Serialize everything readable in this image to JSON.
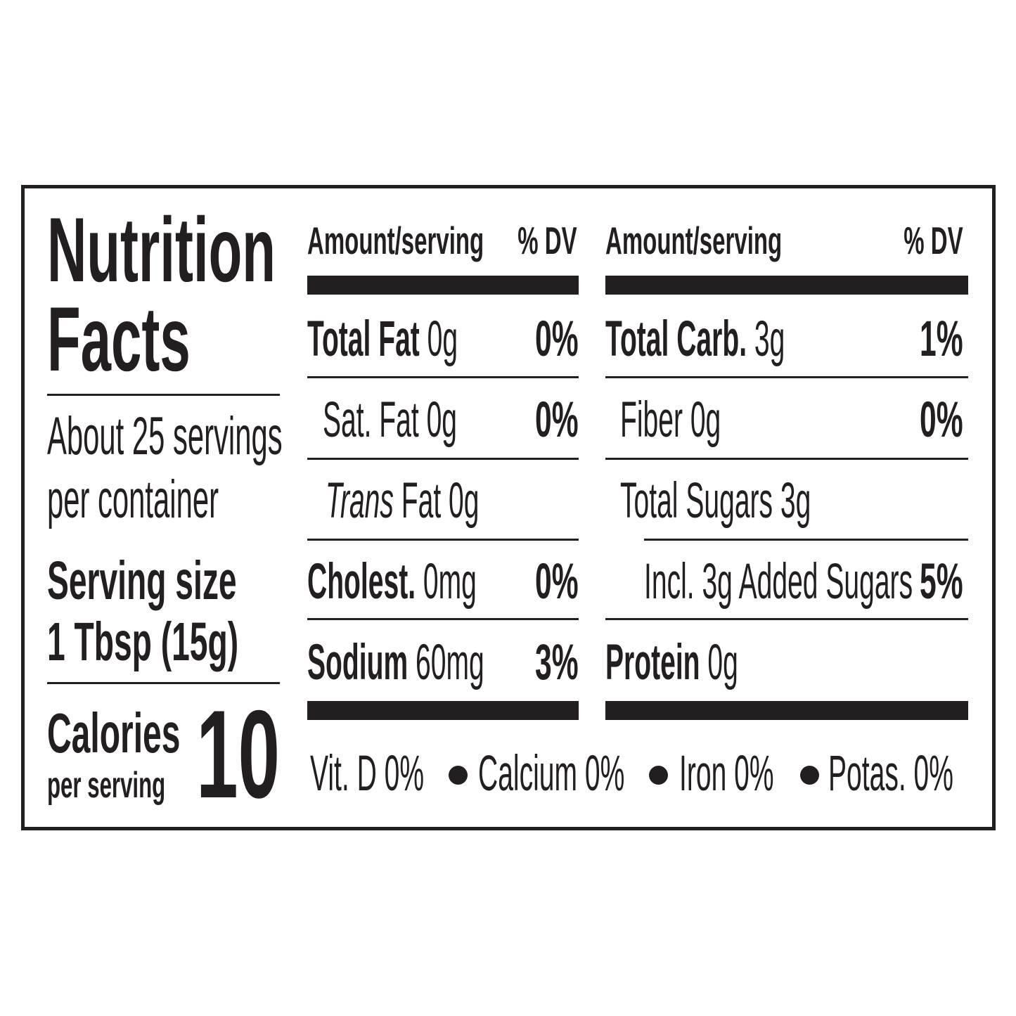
{
  "label": {
    "title_line1": "Nutrition",
    "title_line2": "Facts",
    "servings_line1": "About 25 servings",
    "servings_line2": "per container",
    "serving_size_label": "Serving size",
    "serving_size_value": "1 Tbsp (15g)",
    "calories_label": "Calories",
    "calories_sub": "per serving",
    "calories_value": "10"
  },
  "columns": [
    {
      "header_amount": "Amount/serving",
      "header_dv": "% DV",
      "rows": [
        {
          "name": "Total Fat",
          "amount": "0g",
          "dv": "0%"
        },
        {
          "name": "Sat. Fat",
          "amount": "0g",
          "dv": "0%"
        },
        {
          "name_italic": "Trans",
          "name": "Fat",
          "amount": "0g",
          "dv": ""
        },
        {
          "name": "Cholest.",
          "amount": "0mg",
          "dv": "0%"
        },
        {
          "name": "Sodium",
          "amount": "60mg",
          "dv": "3%"
        }
      ]
    },
    {
      "header_amount": "Amount/serving",
      "header_dv": "% DV",
      "rows": [
        {
          "name": "Total Carb.",
          "amount": "3g",
          "dv": "1%"
        },
        {
          "name": "Fiber",
          "amount": "0g",
          "dv": "0%"
        },
        {
          "name": "Total Sugars",
          "amount": "3g",
          "dv": ""
        },
        {
          "name": "Incl. 3g Added Sugars",
          "amount": "",
          "dv": "5%"
        },
        {
          "name": "Protein",
          "amount": "0g",
          "dv": ""
        }
      ]
    }
  ],
  "micronutrients": [
    "Vit. D 0%",
    "Calcium 0%",
    "Iron 0%",
    "Potas. 0%"
  ],
  "colors": {
    "ink": "#231f20",
    "background": "#ffffff"
  }
}
